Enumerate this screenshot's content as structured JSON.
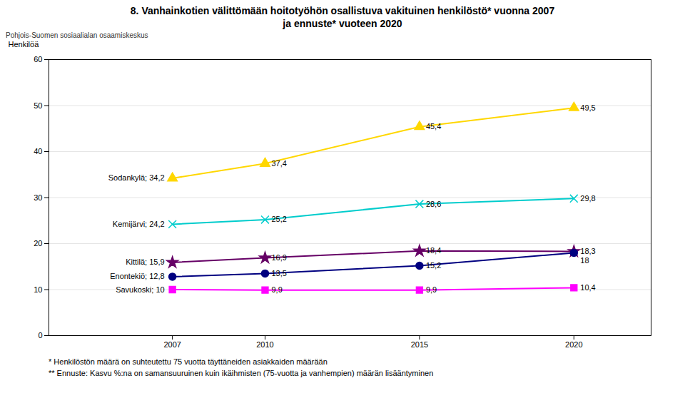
{
  "chart_data": {
    "type": "line",
    "title": "8. Vanhainkotien välittömään hoitotyöhön osallistuva vakituinen henkilöstö* vuonna 2007\nja ennuste* vuoteen 2020",
    "annotations": [
      "Pohjois-Suomen sosiaalialan osaamiskeskus"
    ],
    "footnotes": [
      "* Henkilöstön määrä on suhteutettu 75 vuotta täyttäneiden asiakkaiden määrään",
      "** Ennuste: Kasvu %:na on samansuuruinen kuin ikäihmisten (75-vuotta ja vanhempien) määrän lisääntyminen"
    ],
    "ylabel": "Henkilöä",
    "x": [
      2007,
      2010,
      2015,
      2020
    ],
    "xlim": [
      2003,
      2022.5
    ],
    "xticks": [
      2007,
      2010,
      2015,
      2020
    ],
    "ylim": [
      0,
      60
    ],
    "yticks": [
      0,
      10,
      20,
      30,
      40,
      50,
      60
    ],
    "grid": true,
    "data_labels": true,
    "series": [
      {
        "name": "Sodankylä; 34,2",
        "color": "#FFD700",
        "marker": "triangle",
        "values": [
          34.2,
          37.4,
          45.4,
          49.5
        ],
        "value_labels": [
          null,
          "37,4",
          "45,4",
          "49,5"
        ]
      },
      {
        "name": "Kemijärvi; 24,2",
        "color": "#00CCCC",
        "marker": "x",
        "values": [
          24.2,
          25.2,
          28.6,
          29.8
        ],
        "value_labels": [
          null,
          "25,2",
          "28,6",
          "29,8"
        ]
      },
      {
        "name": "Kittilä; 15,9",
        "color": "#660066",
        "marker": "star",
        "values": [
          15.9,
          16.9,
          18.4,
          18.3
        ],
        "value_labels": [
          null,
          "16,9",
          "18,4",
          "18,3"
        ]
      },
      {
        "name": "Enontekiö; 12,8",
        "color": "#000080",
        "marker": "circle",
        "values": [
          12.8,
          13.5,
          15.2,
          18.0
        ],
        "value_labels": [
          null,
          "13,5",
          "15,2",
          "18"
        ]
      },
      {
        "name": "Savukoski; 10",
        "color": "#FF00FF",
        "marker": "square",
        "values": [
          10.0,
          9.9,
          9.9,
          10.4
        ],
        "value_labels": [
          null,
          "9,9",
          "9,9",
          "10,4"
        ]
      }
    ]
  }
}
